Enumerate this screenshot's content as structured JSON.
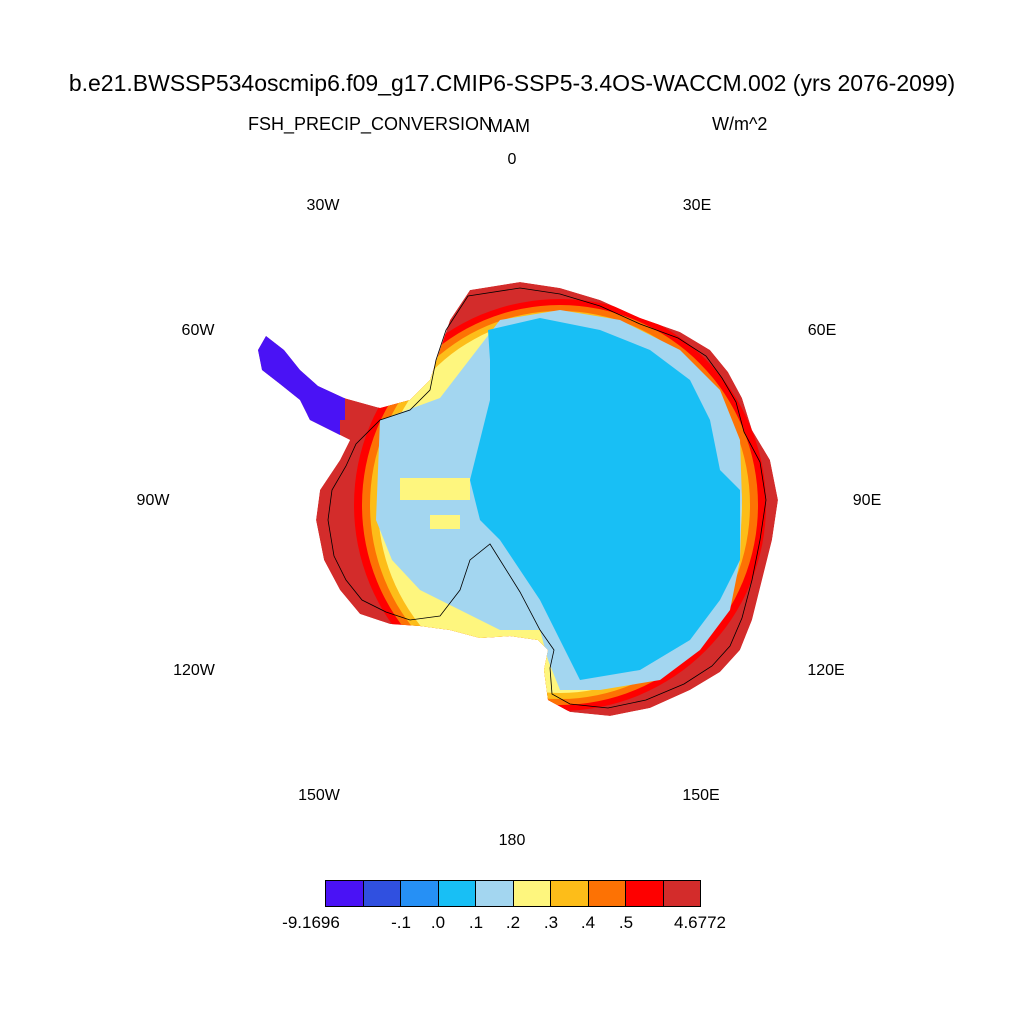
{
  "header": {
    "title": "b.e21.BWSSP534oscmip6.f09_g17.CMIP6-SSP5-3.4OS-WACCM.002 (yrs 2076-2099)",
    "variable": "FSH_PRECIP_CONVERSION",
    "season": "MAM",
    "units": "W/m^2"
  },
  "longitude_labels": {
    "l0": "0",
    "l30e": "30E",
    "l60e": "60E",
    "l90e": "90E",
    "l120e": "120E",
    "l150e": "150E",
    "l180": "180",
    "l150w": "150W",
    "l120w": "120W",
    "l90w": "90W",
    "l60w": "60W",
    "l30w": "30W"
  },
  "colorbar": {
    "colors": [
      "#4a12f5",
      "#3050e0",
      "#2690f5",
      "#18bff5",
      "#a3d6f0",
      "#fef67e",
      "#fdbd19",
      "#fd7204",
      "#fe0000",
      "#d32c2b"
    ],
    "labels": [
      "-9.1696",
      "-.1",
      ".0",
      ".1",
      ".2",
      ".3",
      ".4",
      ".5",
      "4.6772"
    ]
  },
  "map_data": {
    "projection": "south polar stereographic",
    "interior_value_class": ".0 to .1",
    "coastal_value_class": ".5 to 4.6772",
    "peninsula_value_class": "-9.1696 to -.1"
  }
}
